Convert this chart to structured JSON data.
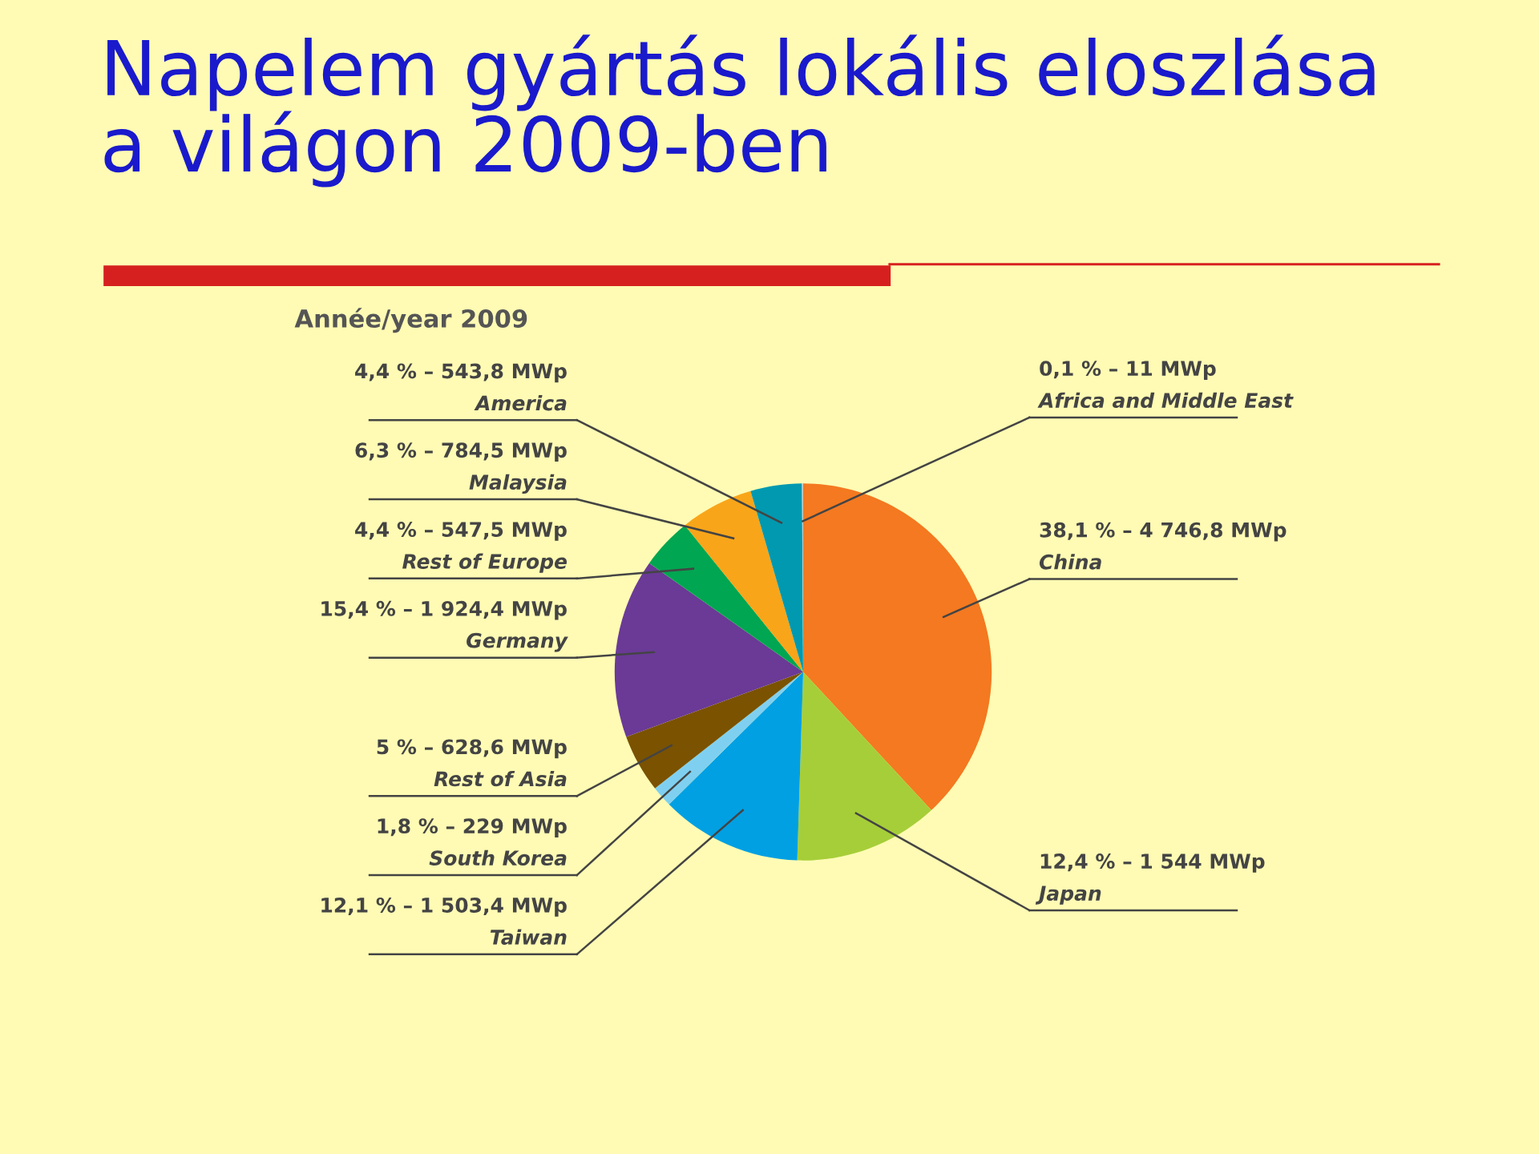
{
  "chart_data": {
    "type": "pie",
    "title": "Napelem gyártás lokális eloszlása\na világon 2009-ben",
    "subtitle": "Année/year 2009",
    "categories": [
      "China",
      "Japan",
      "Taiwan",
      "South Korea",
      "Rest of Asia",
      "Germany",
      "Rest of Europe",
      "Malaysia",
      "America",
      "Africa and Middle East"
    ],
    "values": [
      38.1,
      12.4,
      12.1,
      1.8,
      5,
      15.4,
      4.4,
      6.3,
      4.4,
      0.1
    ],
    "value_labels": [
      "38,1 % – 4 746,8 MWp",
      "12,4 % – 1 544 MWp",
      "12,1 % – 1 503,4 MWp",
      "1,8 % – 229 MWp",
      "5 % – 628,6 MWp",
      "15,4 % – 1 924,4 MWp",
      "4,4 % – 547,5 MWp",
      "6,3 % – 784,5 MWp",
      "4,4 % – 543,8 MWp",
      "0,1 % – 11 MWp"
    ],
    "colors": [
      "#f47920",
      "#a6ce39",
      "#00a0e3",
      "#7fd0f0",
      "#7a5200",
      "#6a3a96",
      "#00a651",
      "#f9a51a",
      "#0099b0",
      "#c8c8c8"
    ],
    "legend": false
  }
}
